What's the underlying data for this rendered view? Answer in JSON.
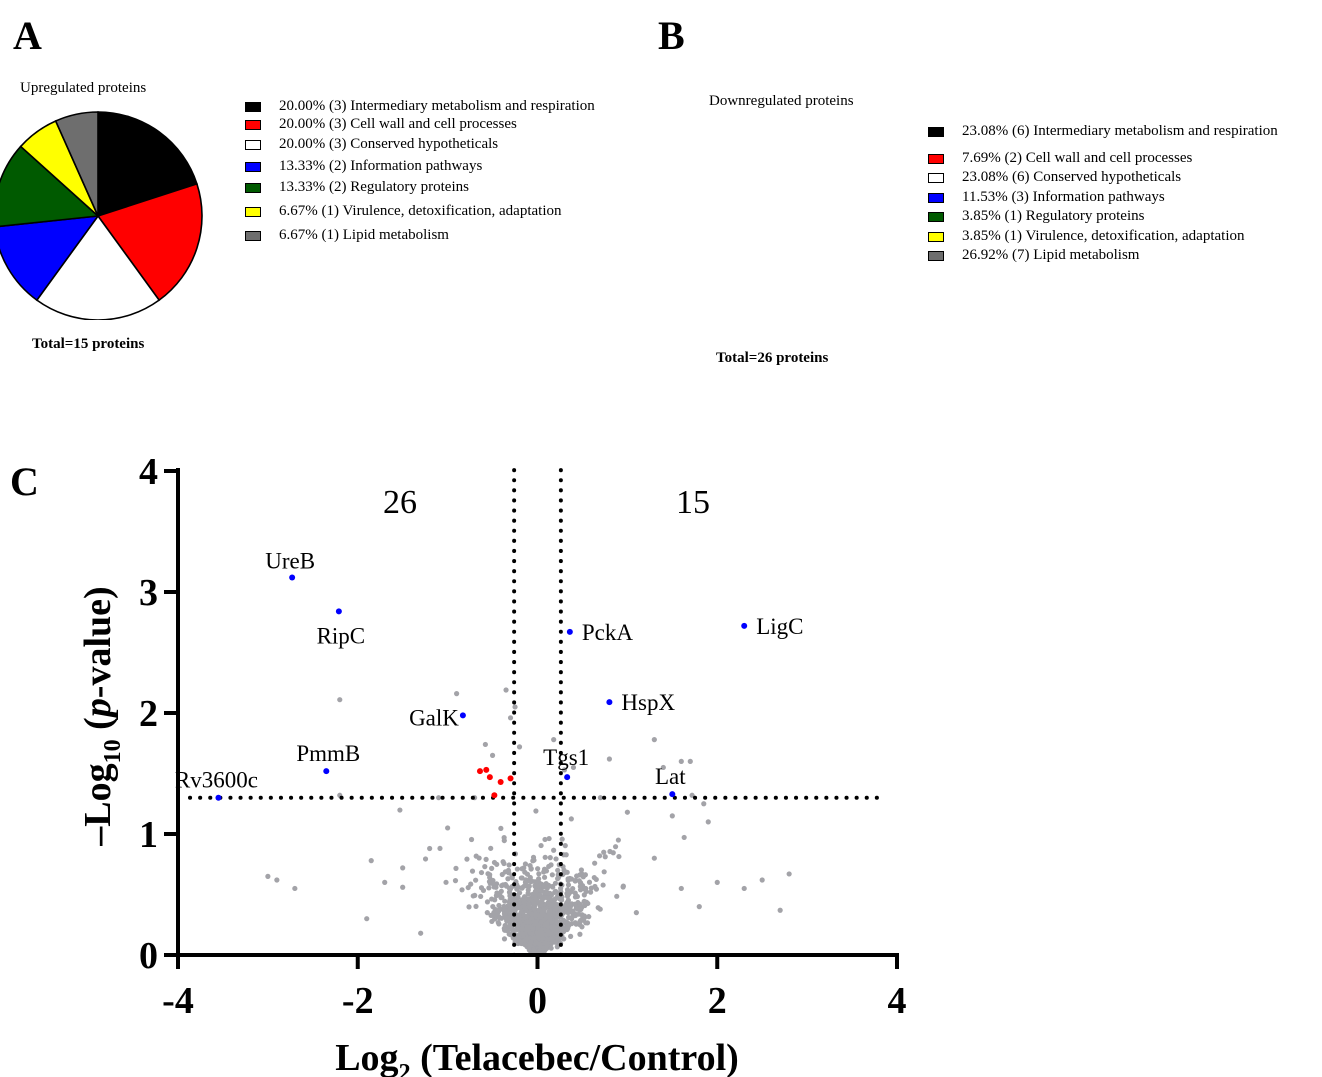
{
  "panels": {
    "a": {
      "letter": "A",
      "title": "Upregulated proteins",
      "total": "Total=15 proteins",
      "legend": [
        {
          "label": "20.00% (3) Intermediary metabolism and respiration",
          "color": "#000000"
        },
        {
          "label": "20.00% (3)  Cell wall and cell processes",
          "color": "#ff0000"
        },
        {
          "label": "20.00% (3) Conserved hypotheticals",
          "color": "#ffffff"
        },
        {
          "label": "13.33% (2) Information pathways",
          "color": "#0000ff"
        },
        {
          "label": "13.33% (2) Regulatory proteins",
          "color": "#005a00"
        },
        {
          "label": "6.67% (1) Virulence, detoxification, adaptation",
          "color": "#ffff00"
        },
        {
          "label": "6.67% (1) Lipid metabolism",
          "color": "#6e6e6e"
        }
      ]
    },
    "b": {
      "letter": "B",
      "title": "Downregulated proteins",
      "total": "Total=26 proteins",
      "legend": [
        {
          "label": "23.08% (6) Intermediary metabolism and respiration",
          "color": "#000000"
        },
        {
          "label": "7.69% (2) Cell wall and cell processes",
          "color": "#ff0000"
        },
        {
          "label": "23.08% (6) Conserved hypotheticals",
          "color": "#ffffff"
        },
        {
          "label": "11.53% (3) Information pathways",
          "color": "#0000ff"
        },
        {
          "label": "3.85% (1) Regulatory proteins",
          "color": "#005a00"
        },
        {
          "label": "3.85% (1) Virulence, detoxification, adaptation",
          "color": "#ffff00"
        },
        {
          "label": "26.92% (7) Lipid metabolism",
          "color": "#6e6e6e"
        }
      ]
    },
    "c": {
      "letter": "C",
      "count_down": "26",
      "count_up": "15",
      "xlabel_main": "Log",
      "xlabel_sub": "2",
      "xlabel_rest": " (Telacebec/Control)",
      "ylabel_main": "–Log",
      "ylabel_sub": "10",
      "ylabel_open": " (",
      "ylabel_italic": "p",
      "ylabel_rest": "-value)"
    }
  },
  "chart_data": [
    {
      "type": "pie",
      "title": "Upregulated proteins",
      "categories": [
        "Intermediary metabolism and respiration",
        "Cell wall and cell processes",
        "Conserved hypotheticals",
        "Information pathways",
        "Regulatory proteins",
        "Virulence, detoxification, adaptation",
        "Lipid metabolism"
      ],
      "values": [
        3,
        3,
        3,
        2,
        2,
        1,
        1
      ],
      "percentages": [
        20.0,
        20.0,
        20.0,
        13.33,
        13.33,
        6.67,
        6.67
      ],
      "colors": [
        "#000000",
        "#ff0000",
        "#ffffff",
        "#0000ff",
        "#005a00",
        "#ffff00",
        "#6e6e6e"
      ],
      "legend_position": "right"
    },
    {
      "type": "pie",
      "title": "Downregulated proteins",
      "categories": [
        "Intermediary metabolism and respiration",
        "Cell wall and cell processes",
        "Conserved hypotheticals",
        "Information pathways",
        "Regulatory proteins",
        "Virulence, detoxification, adaptation",
        "Lipid metabolism"
      ],
      "values": [
        6,
        2,
        6,
        3,
        1,
        1,
        7
      ],
      "percentages": [
        23.08,
        7.69,
        23.08,
        11.53,
        3.85,
        3.85,
        26.92
      ],
      "colors": [
        "#000000",
        "#ff0000",
        "#ffffff",
        "#0000ff",
        "#005a00",
        "#ffff00",
        "#6e6e6e"
      ],
      "legend_position": "right"
    },
    {
      "type": "scatter",
      "xlabel": "Log2 (Telacebec/Control)",
      "ylabel": "–Log10 (p-value)",
      "xlim": [
        -4,
        4
      ],
      "ylim": [
        0,
        4
      ],
      "xticks": [
        -4,
        -2,
        0,
        2,
        4
      ],
      "yticks": [
        0,
        1,
        2,
        3,
        4
      ],
      "thresholds": {
        "x": [
          -0.26,
          0.26
        ],
        "y": 1.3
      },
      "grid": false,
      "labeled_points": [
        {
          "label": "UreB",
          "x": -2.73,
          "y": 3.12,
          "color": "#0000ff"
        },
        {
          "label": "RipC",
          "x": -2.21,
          "y": 2.84,
          "color": "#0000ff"
        },
        {
          "label": "PckA",
          "x": 0.36,
          "y": 2.67,
          "color": "#0000ff"
        },
        {
          "label": "LigC",
          "x": 2.3,
          "y": 2.72,
          "color": "#0000ff"
        },
        {
          "label": "HspX",
          "x": 0.8,
          "y": 2.09,
          "color": "#0000ff"
        },
        {
          "label": "GalK",
          "x": -0.83,
          "y": 1.98,
          "color": "#0000ff"
        },
        {
          "label": "PmmB",
          "x": -2.35,
          "y": 1.52,
          "color": "#0000ff"
        },
        {
          "label": "Tgs1",
          "x": 0.33,
          "y": 1.47,
          "color": "#0000ff"
        },
        {
          "label": "Lat",
          "x": 1.5,
          "y": 1.33,
          "color": "#0000ff"
        },
        {
          "label": "Rv3600c",
          "x": -3.55,
          "y": 1.3,
          "color": "#0000ff"
        }
      ],
      "highlighted_points": [
        {
          "x": -0.64,
          "y": 1.52,
          "color": "#ff0000"
        },
        {
          "x": -0.57,
          "y": 1.53,
          "color": "#ff0000"
        },
        {
          "x": -0.53,
          "y": 1.47,
          "color": "#ff0000"
        },
        {
          "x": -0.41,
          "y": 1.43,
          "color": "#ff0000"
        },
        {
          "x": -0.3,
          "y": 1.46,
          "color": "#ff0000"
        },
        {
          "x": -0.48,
          "y": 1.32,
          "color": "#ff0000"
        }
      ],
      "background_points": [
        [
          -2.2,
          2.11
        ],
        [
          -0.9,
          2.16
        ],
        [
          -0.35,
          2.19
        ],
        [
          -0.25,
          2.05
        ],
        [
          -0.3,
          1.96
        ],
        [
          -0.58,
          1.74
        ],
        [
          -0.5,
          1.65
        ],
        [
          -0.2,
          1.72
        ],
        [
          0.3,
          1.53
        ],
        [
          0.18,
          1.78
        ],
        [
          0.8,
          1.62
        ],
        [
          0.4,
          1.55
        ],
        [
          1.3,
          1.78
        ],
        [
          1.4,
          1.55
        ],
        [
          1.6,
          1.6
        ],
        [
          1.7,
          1.6
        ],
        [
          1.72,
          1.32
        ],
        [
          1.85,
          1.25
        ],
        [
          1.9,
          1.1
        ],
        [
          -1.1,
          1.3
        ],
        [
          -0.7,
          1.3
        ],
        [
          -2.2,
          1.32
        ],
        [
          0.7,
          1.3
        ],
        [
          1.0,
          1.18
        ],
        [
          1.5,
          1.15
        ],
        [
          -3.0,
          0.65
        ],
        [
          -2.9,
          0.62
        ],
        [
          -2.7,
          0.55
        ],
        [
          -1.9,
          0.3
        ],
        [
          -1.85,
          0.78
        ],
        [
          -1.5,
          0.72
        ],
        [
          2.8,
          0.67
        ],
        [
          2.5,
          0.62
        ],
        [
          2.3,
          0.55
        ],
        [
          2.0,
          0.6
        ],
        [
          2.7,
          0.37
        ],
        [
          1.8,
          0.4
        ],
        [
          1.6,
          0.55
        ],
        [
          -1.2,
          0.88
        ],
        [
          -1.0,
          1.05
        ],
        [
          0.9,
          0.95
        ],
        [
          1.3,
          0.8
        ],
        [
          -1.5,
          0.56
        ],
        [
          -1.7,
          0.6
        ],
        [
          1.1,
          0.35
        ],
        [
          -1.3,
          0.18
        ]
      ],
      "dense_cluster_note": ""
    }
  ]
}
